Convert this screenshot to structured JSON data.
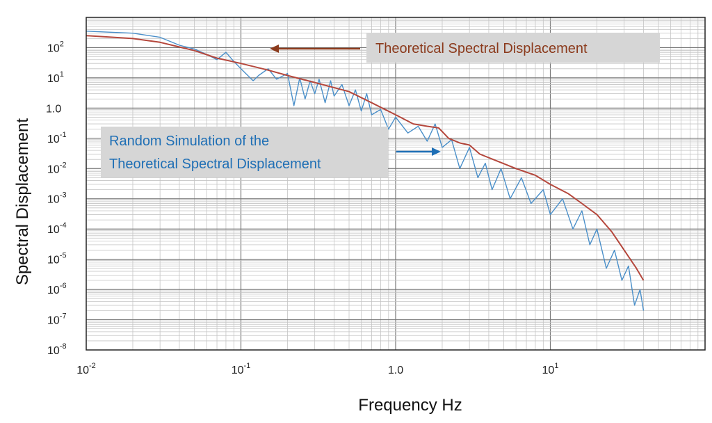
{
  "chart_data": {
    "type": "line",
    "xlabel": "Frequency Hz",
    "ylabel": "Spectral Displacement",
    "x_scale": "log",
    "y_scale": "log",
    "xlim": [
      0.01,
      100
    ],
    "ylim": [
      1e-08,
      1000
    ],
    "grid": true,
    "x_ticks": [
      {
        "value": 0.01,
        "base": "10",
        "exp": "-2"
      },
      {
        "value": 0.1,
        "base": "10",
        "exp": "-1"
      },
      {
        "value": 1,
        "base": "1.0",
        "exp": ""
      },
      {
        "value": 10,
        "base": "10",
        "exp": "1"
      }
    ],
    "y_ticks": [
      {
        "value": 100,
        "base": "10",
        "exp": "2"
      },
      {
        "value": 10,
        "base": "10",
        "exp": "1"
      },
      {
        "value": 1,
        "base": "1.0",
        "exp": ""
      },
      {
        "value": 0.1,
        "base": "10",
        "exp": "-1"
      },
      {
        "value": 0.01,
        "base": "10",
        "exp": "-2"
      },
      {
        "value": 0.001,
        "base": "10",
        "exp": "-3"
      },
      {
        "value": 0.0001,
        "base": "10",
        "exp": "-4"
      },
      {
        "value": 1e-05,
        "base": "10",
        "exp": "-5"
      },
      {
        "value": 1e-06,
        "base": "10",
        "exp": "-6"
      },
      {
        "value": 1e-07,
        "base": "10",
        "exp": "-7"
      },
      {
        "value": 1e-08,
        "base": "10",
        "exp": "-8"
      }
    ],
    "series": [
      {
        "name": "Theoretical Spectral Displacement",
        "color": "#b5473c",
        "points": [
          [
            0.01,
            250
          ],
          [
            0.02,
            200
          ],
          [
            0.03,
            150
          ],
          [
            0.05,
            80
          ],
          [
            0.07,
            45
          ],
          [
            0.1,
            30
          ],
          [
            0.15,
            18
          ],
          [
            0.2,
            12
          ],
          [
            0.3,
            7
          ],
          [
            0.5,
            3.5
          ],
          [
            0.7,
            1.5
          ],
          [
            1.0,
            0.6
          ],
          [
            1.3,
            0.3
          ],
          [
            1.6,
            0.25
          ],
          [
            1.9,
            0.22
          ],
          [
            2.2,
            0.1
          ],
          [
            2.6,
            0.07
          ],
          [
            3.0,
            0.06
          ],
          [
            3.5,
            0.03
          ],
          [
            4.5,
            0.018
          ],
          [
            6,
            0.01
          ],
          [
            8,
            0.006
          ],
          [
            10,
            0.003
          ],
          [
            13,
            0.0015
          ],
          [
            16,
            0.0007
          ],
          [
            20,
            0.0003
          ],
          [
            25,
            8e-05
          ],
          [
            30,
            2e-05
          ],
          [
            36,
            5e-06
          ],
          [
            40,
            2e-06
          ]
        ]
      },
      {
        "name": "Random Simulation of the Theoretical Spectral Displacement",
        "color": "#4a8fc9",
        "points": [
          [
            0.01,
            350
          ],
          [
            0.02,
            300
          ],
          [
            0.03,
            220
          ],
          [
            0.04,
            120
          ],
          [
            0.05,
            90
          ],
          [
            0.06,
            60
          ],
          [
            0.07,
            40
          ],
          [
            0.08,
            70
          ],
          [
            0.09,
            35
          ],
          [
            0.1,
            20
          ],
          [
            0.12,
            8
          ],
          [
            0.13,
            12
          ],
          [
            0.15,
            20
          ],
          [
            0.17,
            9
          ],
          [
            0.2,
            14
          ],
          [
            0.22,
            1.2
          ],
          [
            0.24,
            10
          ],
          [
            0.26,
            2
          ],
          [
            0.28,
            8
          ],
          [
            0.3,
            3
          ],
          [
            0.32,
            9
          ],
          [
            0.35,
            1.5
          ],
          [
            0.38,
            8
          ],
          [
            0.4,
            2.5
          ],
          [
            0.45,
            6
          ],
          [
            0.5,
            1.2
          ],
          [
            0.55,
            4
          ],
          [
            0.6,
            0.8
          ],
          [
            0.65,
            3
          ],
          [
            0.7,
            0.6
          ],
          [
            0.8,
            0.9
          ],
          [
            0.9,
            0.2
          ],
          [
            1.0,
            0.5
          ],
          [
            1.2,
            0.15
          ],
          [
            1.4,
            0.25
          ],
          [
            1.6,
            0.08
          ],
          [
            1.8,
            0.3
          ],
          [
            2.0,
            0.05
          ],
          [
            2.3,
            0.09
          ],
          [
            2.6,
            0.01
          ],
          [
            3.0,
            0.05
          ],
          [
            3.4,
            0.005
          ],
          [
            3.8,
            0.015
          ],
          [
            4.2,
            0.002
          ],
          [
            4.8,
            0.01
          ],
          [
            5.5,
            0.001
          ],
          [
            6.5,
            0.005
          ],
          [
            7.5,
            0.0007
          ],
          [
            9,
            0.002
          ],
          [
            10,
            0.0003
          ],
          [
            12,
            0.001
          ],
          [
            14,
            0.0001
          ],
          [
            16,
            0.0004
          ],
          [
            18,
            3e-05
          ],
          [
            20,
            0.0001
          ],
          [
            23,
            5e-06
          ],
          [
            26,
            2e-05
          ],
          [
            29,
            2e-06
          ],
          [
            32,
            6e-06
          ],
          [
            35,
            3e-07
          ],
          [
            38,
            1e-06
          ],
          [
            40,
            2e-07
          ]
        ]
      }
    ],
    "annotations": [
      {
        "text": "Theoretical Spectral Displacement",
        "color": "#8b3a1c"
      },
      {
        "lines": [
          "Random Simulation of the",
          "Theoretical Spectral Displacement"
        ],
        "color": "#1f6fb5"
      }
    ]
  }
}
